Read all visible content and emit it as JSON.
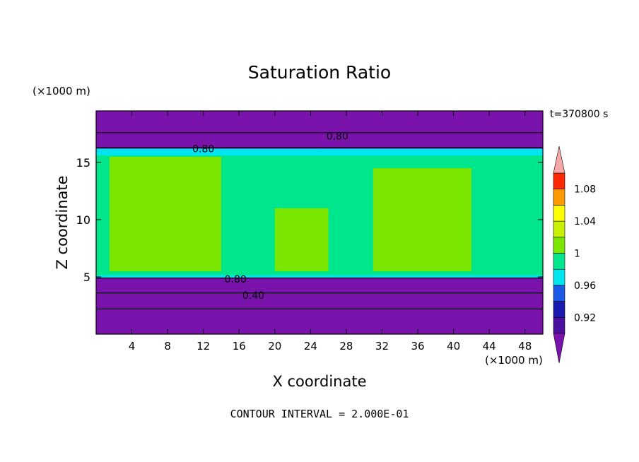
{
  "chart_data": {
    "type": "heatmap",
    "title": "Saturation Ratio",
    "time_label": "t=370800 s",
    "xlabel": "X coordinate",
    "ylabel": "Z coordinate",
    "x_unit": "(×1000 m)",
    "y_unit": "(×1000 m)",
    "xlim": [
      0,
      50
    ],
    "ylim": [
      0,
      19.5
    ],
    "x_ticks": [
      4,
      8,
      12,
      16,
      20,
      24,
      28,
      32,
      36,
      40,
      44,
      48
    ],
    "y_ticks": [
      5,
      10,
      15
    ],
    "footer": "CONTOUR INTERVAL = 2.000E-01",
    "colorbar": {
      "levels": [
        0.9,
        0.92,
        0.94,
        0.96,
        0.98,
        1.0,
        1.02,
        1.04,
        1.06,
        1.08,
        1.1
      ],
      "labels": [
        "0.92",
        "0.96",
        "1",
        "1.04",
        "1.08"
      ],
      "label_values": [
        0.92,
        0.96,
        1.0,
        1.04,
        1.08
      ],
      "colors": [
        "#4b0fa0",
        "#1a1ab0",
        "#1a5ae6",
        "#00e6f0",
        "#00e68c",
        "#7be600",
        "#c8f000",
        "#ffff00",
        "#ff9a00",
        "#ff2800"
      ],
      "under_color": "#7a13ab",
      "over_color": "#f7a7a7"
    },
    "regions": [
      {
        "x": [
          0,
          50
        ],
        "z": [
          0,
          5
        ],
        "value": 0.5
      },
      {
        "x": [
          0,
          50
        ],
        "z": [
          5,
          16
        ],
        "value": 0.99
      },
      {
        "x": [
          1.5,
          14
        ],
        "z": [
          5.5,
          15.5
        ],
        "value": 1.01
      },
      {
        "x": [
          20,
          26
        ],
        "z": [
          5.5,
          11
        ],
        "value": 1.01
      },
      {
        "x": [
          31,
          42
        ],
        "z": [
          5.5,
          14.5
        ],
        "value": 1.01
      },
      {
        "x": [
          0,
          50
        ],
        "z": [
          16,
          19.5
        ],
        "value": 0.7
      }
    ],
    "contour_labels": [
      {
        "text": "0.80",
        "x": 12,
        "z": 16.2
      },
      {
        "text": "0.80",
        "x": 27,
        "z": 17.3
      },
      {
        "text": "0.80",
        "x": 15.6,
        "z": 4.8
      },
      {
        "text": "0.40",
        "x": 17.6,
        "z": 3.4
      }
    ]
  }
}
